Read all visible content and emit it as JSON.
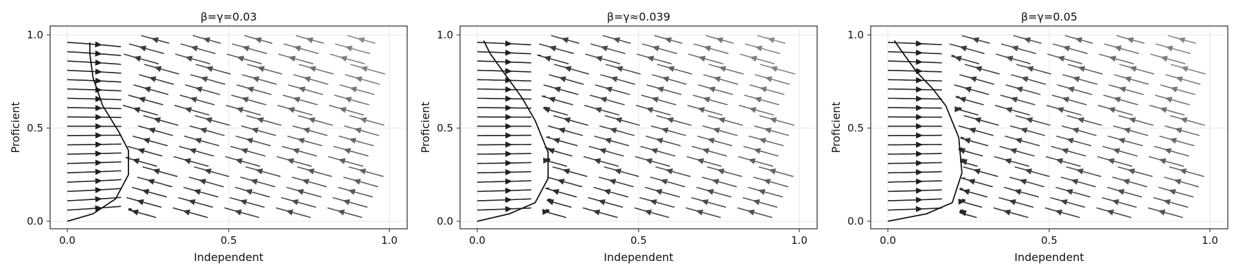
{
  "chart_data": [
    {
      "type": "streamplot",
      "title": "β=γ=0.03",
      "xlabel": "Independent",
      "ylabel": "Proficient",
      "xlim": [
        0,
        1
      ],
      "ylim": [
        0,
        1
      ],
      "xticks": [
        "0.0",
        "0.5",
        "1.0"
      ],
      "yticks": [
        "0.0",
        "0.5",
        "1.0"
      ],
      "grid": true,
      "color_scale": "speed (dark = fast, light = slow)",
      "separatrix": [
        [
          0.0,
          0.0
        ],
        [
          0.08,
          0.04
        ],
        [
          0.15,
          0.12
        ],
        [
          0.19,
          0.25
        ],
        [
          0.19,
          0.38
        ],
        [
          0.16,
          0.48
        ],
        [
          0.11,
          0.62
        ],
        [
          0.08,
          0.77
        ],
        [
          0.07,
          0.9
        ],
        [
          0.07,
          0.96
        ]
      ]
    },
    {
      "type": "streamplot",
      "title": "β=γ≈0.039",
      "xlabel": "Independent",
      "ylabel": "Proficient",
      "xlim": [
        0,
        1
      ],
      "ylim": [
        0,
        1
      ],
      "xticks": [
        "0.0",
        "0.5",
        "1.0"
      ],
      "yticks": [
        "0.0",
        "0.5",
        "1.0"
      ],
      "grid": true,
      "color_scale": "speed (dark = fast, light = slow)",
      "separatrix": [
        [
          0.0,
          0.0
        ],
        [
          0.1,
          0.04
        ],
        [
          0.18,
          0.1
        ],
        [
          0.22,
          0.23
        ],
        [
          0.22,
          0.37
        ],
        [
          0.18,
          0.54
        ],
        [
          0.14,
          0.66
        ],
        [
          0.09,
          0.78
        ],
        [
          0.04,
          0.9
        ],
        [
          0.02,
          0.97
        ]
      ]
    },
    {
      "type": "streamplot",
      "title": "β=γ=0.05",
      "xlabel": "Independent",
      "ylabel": "Proficient",
      "xlim": [
        0,
        1
      ],
      "ylim": [
        0,
        1
      ],
      "xticks": [
        "0.0",
        "0.5",
        "1.0"
      ],
      "yticks": [
        "0.0",
        "0.5",
        "1.0"
      ],
      "grid": true,
      "color_scale": "speed (dark = fast, light = slow)",
      "separatrix": [
        [
          0.0,
          0.0
        ],
        [
          0.12,
          0.04
        ],
        [
          0.2,
          0.1
        ],
        [
          0.23,
          0.26
        ],
        [
          0.22,
          0.45
        ],
        [
          0.18,
          0.62
        ],
        [
          0.14,
          0.71
        ],
        [
          0.09,
          0.8
        ],
        [
          0.04,
          0.92
        ],
        [
          0.02,
          0.97
        ]
      ]
    }
  ]
}
